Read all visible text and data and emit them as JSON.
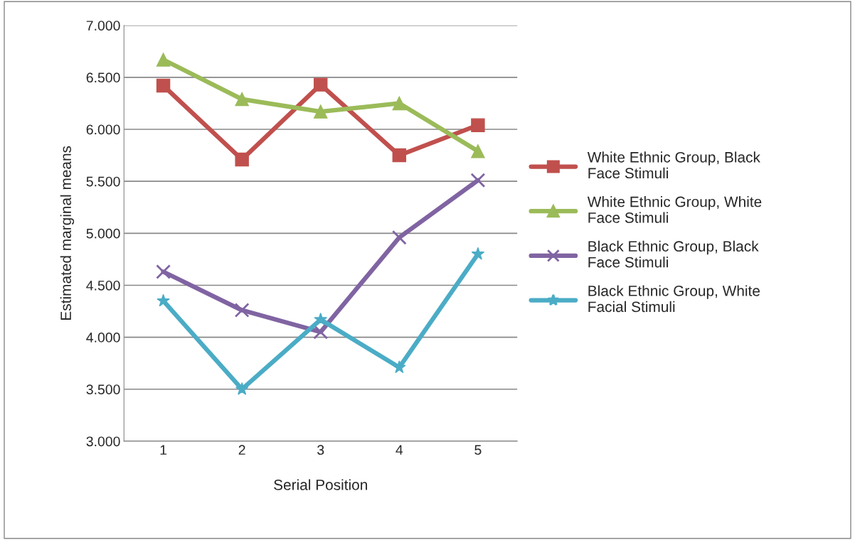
{
  "chart_data": {
    "type": "line",
    "xlabel": "Serial Position",
    "ylabel": "Estimated marginal means",
    "categories": [
      "1",
      "2",
      "3",
      "4",
      "5"
    ],
    "series": [
      {
        "name": "White Ethnic Group, Black Face Stimuli",
        "color": "#c0504d",
        "marker": "square",
        "values": [
          6.42,
          5.71,
          6.43,
          5.75,
          6.04
        ]
      },
      {
        "name": "White Ethnic Group, White Face Stimuli",
        "color": "#9bbb59",
        "marker": "triangle",
        "values": [
          6.67,
          6.29,
          6.17,
          6.25,
          5.79
        ]
      },
      {
        "name": "Black Ethnic Group, Black Face Stimuli",
        "color": "#8064a2",
        "marker": "cross",
        "values": [
          4.63,
          4.26,
          4.05,
          4.96,
          5.51
        ]
      },
      {
        "name": "Black Ethnic Group, White Facial Stimuli",
        "color": "#4bacc6",
        "marker": "star",
        "values": [
          4.35,
          3.5,
          4.17,
          3.71,
          4.8
        ]
      }
    ],
    "ylim": [
      3,
      7
    ],
    "yticks": [
      {
        "value": 3,
        "label": "3.000"
      },
      {
        "value": 3.5,
        "label": "3.500"
      },
      {
        "value": 4,
        "label": "4.000"
      },
      {
        "value": 4.5,
        "label": "4.500"
      },
      {
        "value": 5,
        "label": "5.000"
      },
      {
        "value": 5.5,
        "label": "5.500"
      },
      {
        "value": 6,
        "label": "6.000"
      },
      {
        "value": 6.5,
        "label": "6.500"
      },
      {
        "value": 7,
        "label": "7.000"
      }
    ],
    "grid": "y",
    "legend": "right",
    "line_style": "solid"
  }
}
